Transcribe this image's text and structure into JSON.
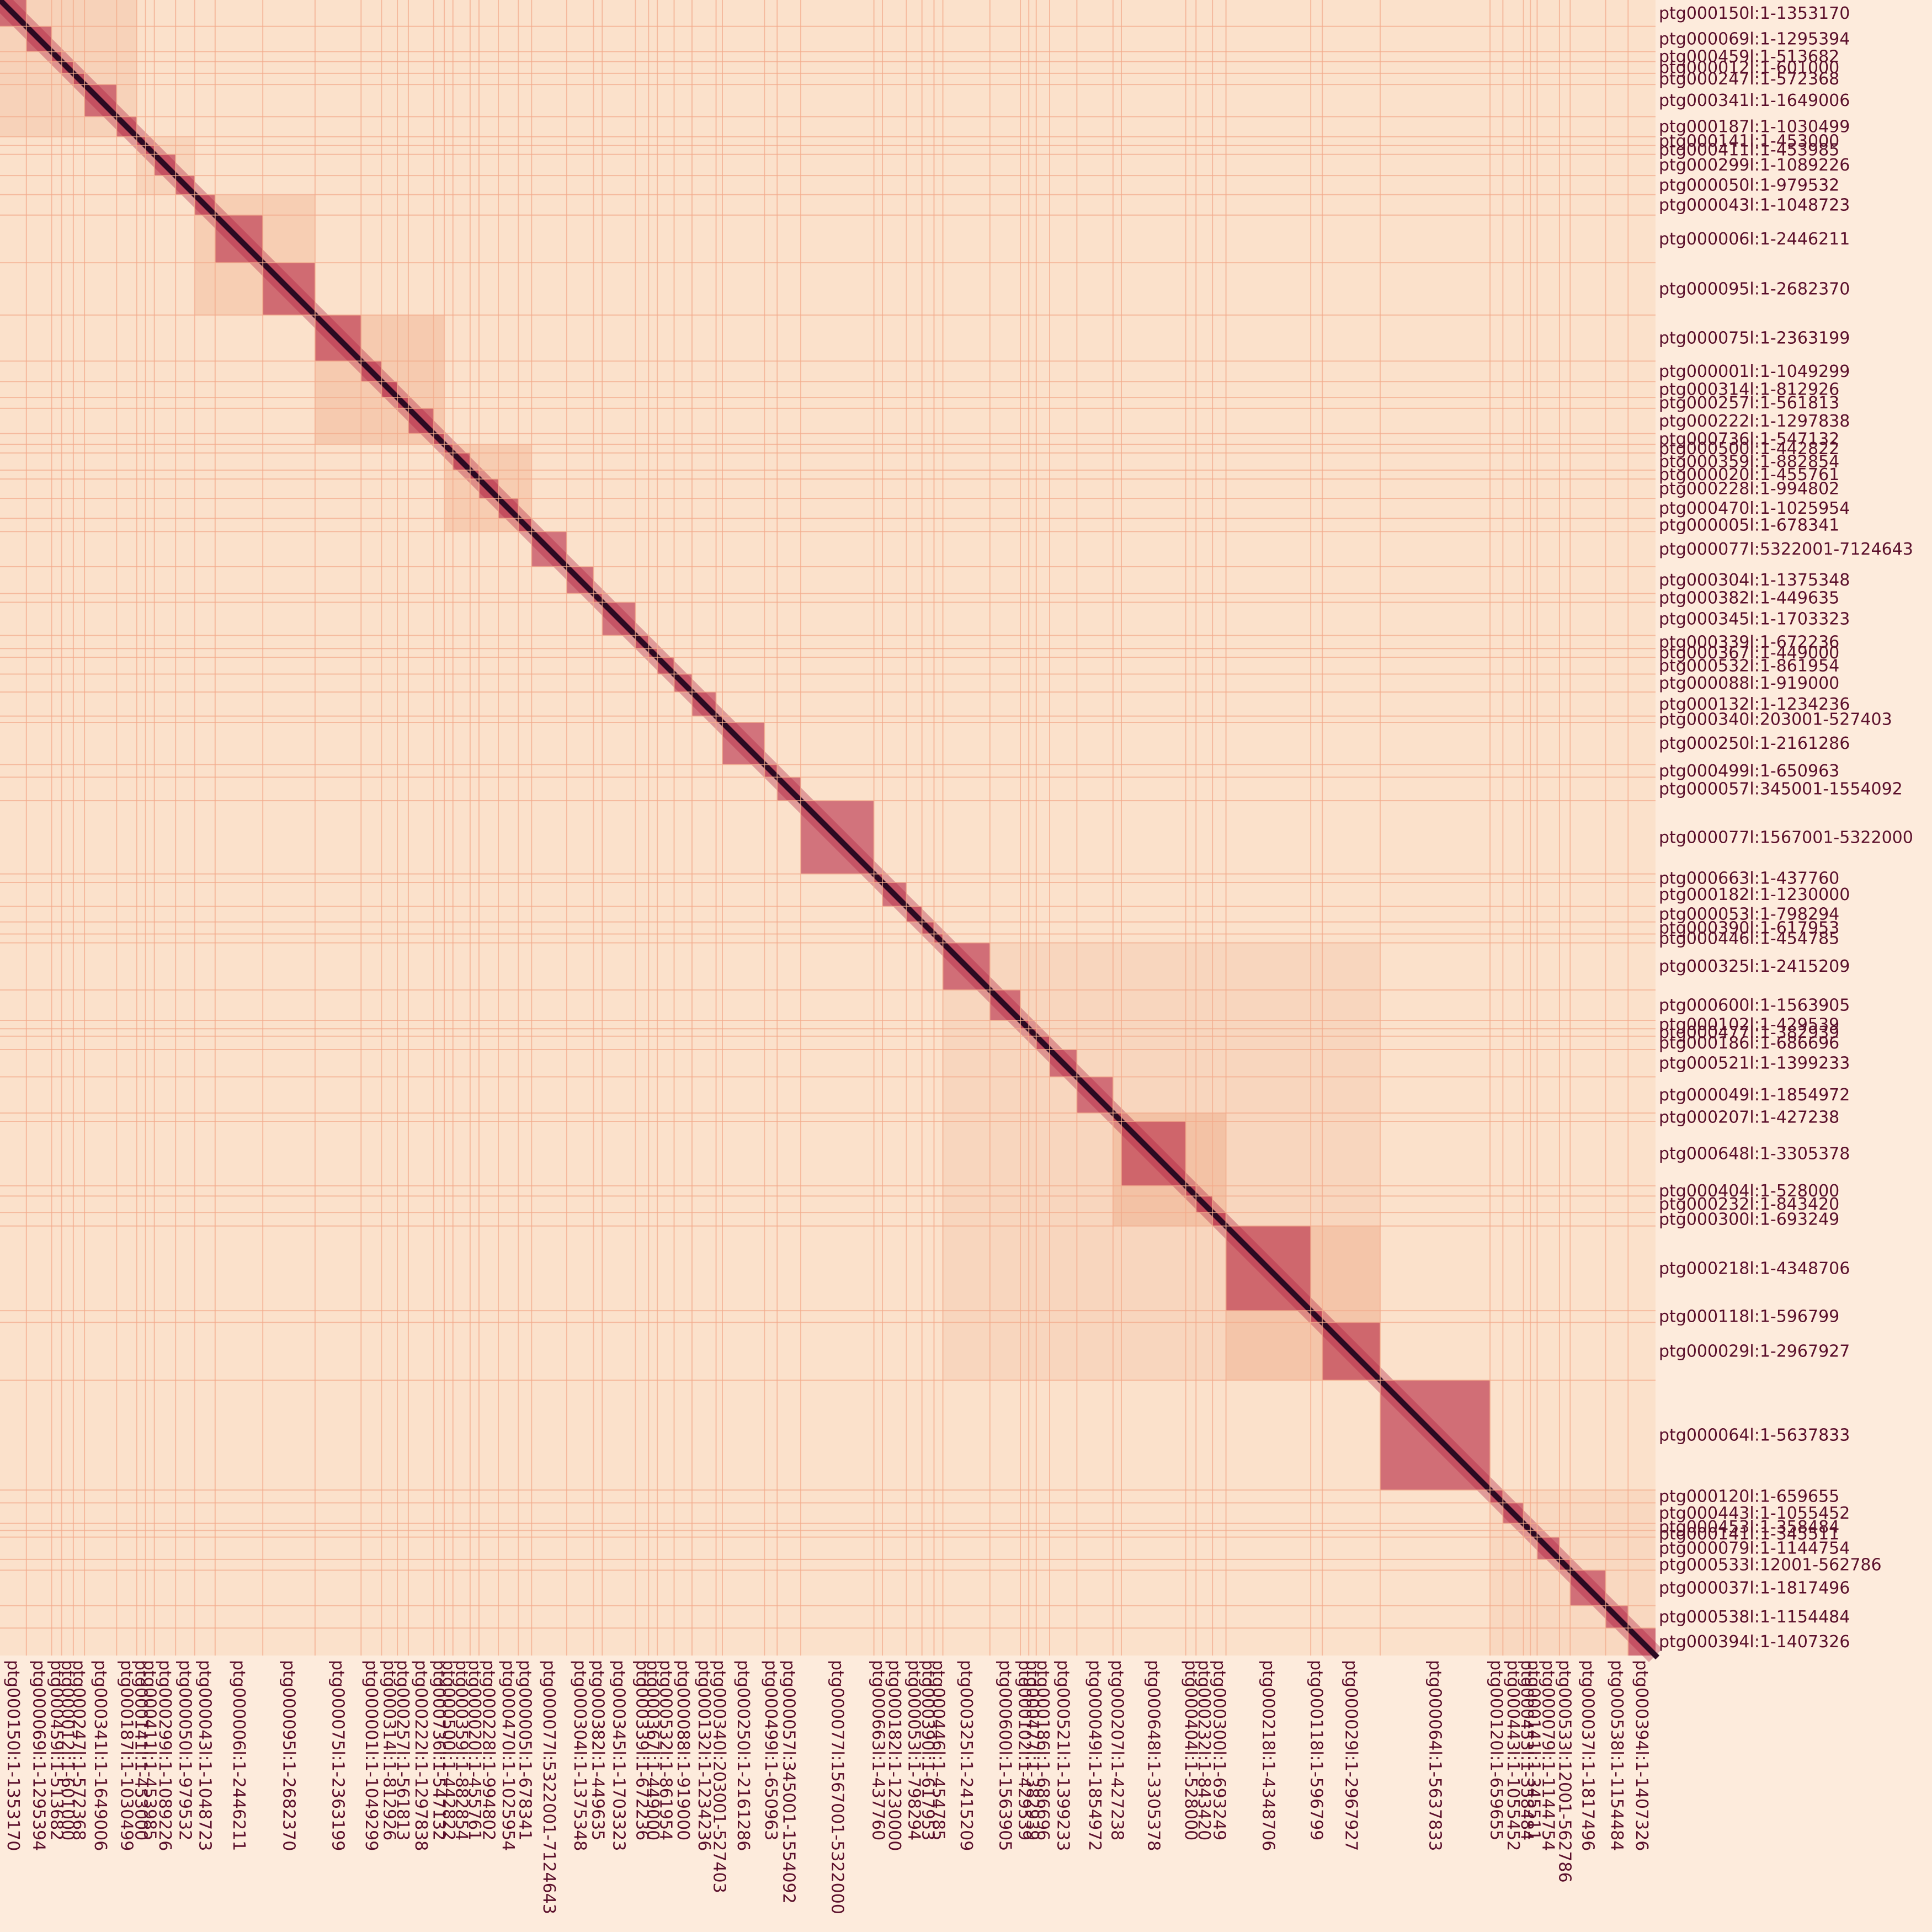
{
  "chart_data": {
    "type": "heatmap",
    "title": "",
    "xlabel": "",
    "ylabel": "",
    "colors": {
      "background": "#fdebdc",
      "low": "#fbe1cb",
      "mid": "#e8845a",
      "high": "#b0193c",
      "max": "#2b0a22",
      "boundary": "#f2a98a",
      "label": "#5a0f2b"
    },
    "contigs": [
      {
        "label": "ptg000150l:1-1353170",
        "length": 1353170
      },
      {
        "label": "ptg000069l:1-1295394",
        "length": 1295394
      },
      {
        "label": "ptg000459l:1-513682",
        "length": 513682
      },
      {
        "label": "ptg000012l:1-601000",
        "length": 601000
      },
      {
        "label": "ptg000247l:1-572368",
        "length": 572368
      },
      {
        "label": "ptg000341l:1-1649006",
        "length": 1649006
      },
      {
        "label": "ptg000187l:1-1030499",
        "length": 1030499
      },
      {
        "label": "ptg000141l:1-453000",
        "length": 453000
      },
      {
        "label": "ptg000411l:1-453985",
        "length": 453985
      },
      {
        "label": "ptg000299l:1-1089226",
        "length": 1089226
      },
      {
        "label": "ptg000050l:1-979532",
        "length": 979532
      },
      {
        "label": "ptg000043l:1-1048723",
        "length": 1048723
      },
      {
        "label": "ptg000006l:1-2446211",
        "length": 2446211
      },
      {
        "label": "ptg000095l:1-2682370",
        "length": 2682370
      },
      {
        "label": "ptg000075l:1-2363199",
        "length": 2363199
      },
      {
        "label": "ptg000001l:1-1049299",
        "length": 1049299
      },
      {
        "label": "ptg000314l:1-812926",
        "length": 812926
      },
      {
        "label": "ptg000257l:1-561813",
        "length": 561813
      },
      {
        "label": "ptg000222l:1-1297838",
        "length": 1297838
      },
      {
        "label": "ptg000736l:1-547132",
        "length": 547132
      },
      {
        "label": "ptg000500l:1-442822",
        "length": 442822
      },
      {
        "label": "ptg000359l:1-882854",
        "length": 882854
      },
      {
        "label": "ptg000020l:1-455761",
        "length": 455761
      },
      {
        "label": "ptg000228l:1-994802",
        "length": 994802
      },
      {
        "label": "ptg000470l:1-1025954",
        "length": 1025954
      },
      {
        "label": "ptg000005l:1-678341",
        "length": 678341
      },
      {
        "label": "ptg000077l:5322001-7124643",
        "length": 1802643
      },
      {
        "label": "ptg000304l:1-1375348",
        "length": 1375348
      },
      {
        "label": "ptg000382l:1-449635",
        "length": 449635
      },
      {
        "label": "ptg000345l:1-1703323",
        "length": 1703323
      },
      {
        "label": "ptg000339l:1-672236",
        "length": 672236
      },
      {
        "label": "ptg000367l:1-449000",
        "length": 449000
      },
      {
        "label": "ptg000532l:1-861954",
        "length": 861954
      },
      {
        "label": "ptg000088l:1-919000",
        "length": 919000
      },
      {
        "label": "ptg000132l:1-1234236",
        "length": 1234236
      },
      {
        "label": "ptg000340l:203001-527403",
        "length": 324403
      },
      {
        "label": "ptg000250l:1-2161286",
        "length": 2161286
      },
      {
        "label": "ptg000499l:1-650963",
        "length": 650963
      },
      {
        "label": "ptg000057l:345001-1554092",
        "length": 1209092
      },
      {
        "label": "ptg000077l:1567001-5322000",
        "length": 3755000
      },
      {
        "label": "ptg000663l:1-437760",
        "length": 437760
      },
      {
        "label": "ptg000182l:1-1230000",
        "length": 1230000
      },
      {
        "label": "ptg000053l:1-798294",
        "length": 798294
      },
      {
        "label": "ptg000390l:1-617953",
        "length": 617953
      },
      {
        "label": "ptg000446l:1-454785",
        "length": 454785
      },
      {
        "label": "ptg000325l:1-2415209",
        "length": 2415209
      },
      {
        "label": "ptg000600l:1-1563905",
        "length": 1563905
      },
      {
        "label": "ptg000102l:1-429539",
        "length": 429539
      },
      {
        "label": "ptg000477l:1-382939",
        "length": 382939
      },
      {
        "label": "ptg000186l:1-686696",
        "length": 686696
      },
      {
        "label": "ptg000521l:1-1399233",
        "length": 1399233
      },
      {
        "label": "ptg000049l:1-1854972",
        "length": 1854972
      },
      {
        "label": "ptg000207l:1-427238",
        "length": 427238
      },
      {
        "label": "ptg000648l:1-3305378",
        "length": 3305378
      },
      {
        "label": "ptg000404l:1-528000",
        "length": 528000
      },
      {
        "label": "ptg000232l:1-843420",
        "length": 843420
      },
      {
        "label": "ptg000300l:1-693249",
        "length": 693249
      },
      {
        "label": "ptg000218l:1-4348706",
        "length": 4348706
      },
      {
        "label": "ptg000118l:1-596799",
        "length": 596799
      },
      {
        "label": "ptg000029l:1-2967927",
        "length": 2967927
      },
      {
        "label": "ptg000064l:1-5637833",
        "length": 5637833
      },
      {
        "label": "ptg000120l:1-659655",
        "length": 659655
      },
      {
        "label": "ptg000443l:1-1055452",
        "length": 1055452
      },
      {
        "label": "ptg000453l:1-358484",
        "length": 358484
      },
      {
        "label": "ptg000141l:1-345511",
        "length": 345511
      },
      {
        "label": "ptg000079l:1-1144754",
        "length": 1144754
      },
      {
        "label": "ptg000533l:12001-562786",
        "length": 550786
      },
      {
        "label": "ptg000037l:1-1817496",
        "length": 1817496
      },
      {
        "label": "ptg000538l:1-1154484",
        "length": 1154484
      },
      {
        "label": "ptg000394l:1-1407326",
        "length": 1407326
      }
    ],
    "enriched_blocks": [
      {
        "from": "ptg000150l:1-1353170",
        "to": "ptg000187l:1-1030499",
        "level": 0.35
      },
      {
        "from": "ptg000141l:1-453000",
        "to": "ptg000050l:1-979532",
        "level": 0.3
      },
      {
        "from": "ptg000043l:1-1048723",
        "to": "ptg000095l:1-2682370",
        "level": 0.45
      },
      {
        "from": "ptg000075l:1-2363199",
        "to": "ptg000736l:1-547132",
        "level": 0.55
      },
      {
        "from": "ptg000500l:1-442822",
        "to": "ptg000005l:1-678341",
        "level": 0.5
      },
      {
        "from": "ptg000325l:1-2415209",
        "to": "ptg000029l:1-2967927",
        "level": 0.25
      },
      {
        "from": "ptg000207l:1-427238",
        "to": "ptg000300l:1-693249",
        "level": 0.55
      },
      {
        "from": "ptg000218l:1-4348706",
        "to": "ptg000029l:1-2967927",
        "level": 0.45
      },
      {
        "from": "ptg000064l:1-5637833",
        "to": "ptg000064l:1-5637833",
        "level": 0.3
      },
      {
        "from": "ptg000120l:1-659655",
        "to": "ptg000394l:1-1407326",
        "level": 0.2
      }
    ],
    "legend": "none",
    "grid": true
  }
}
